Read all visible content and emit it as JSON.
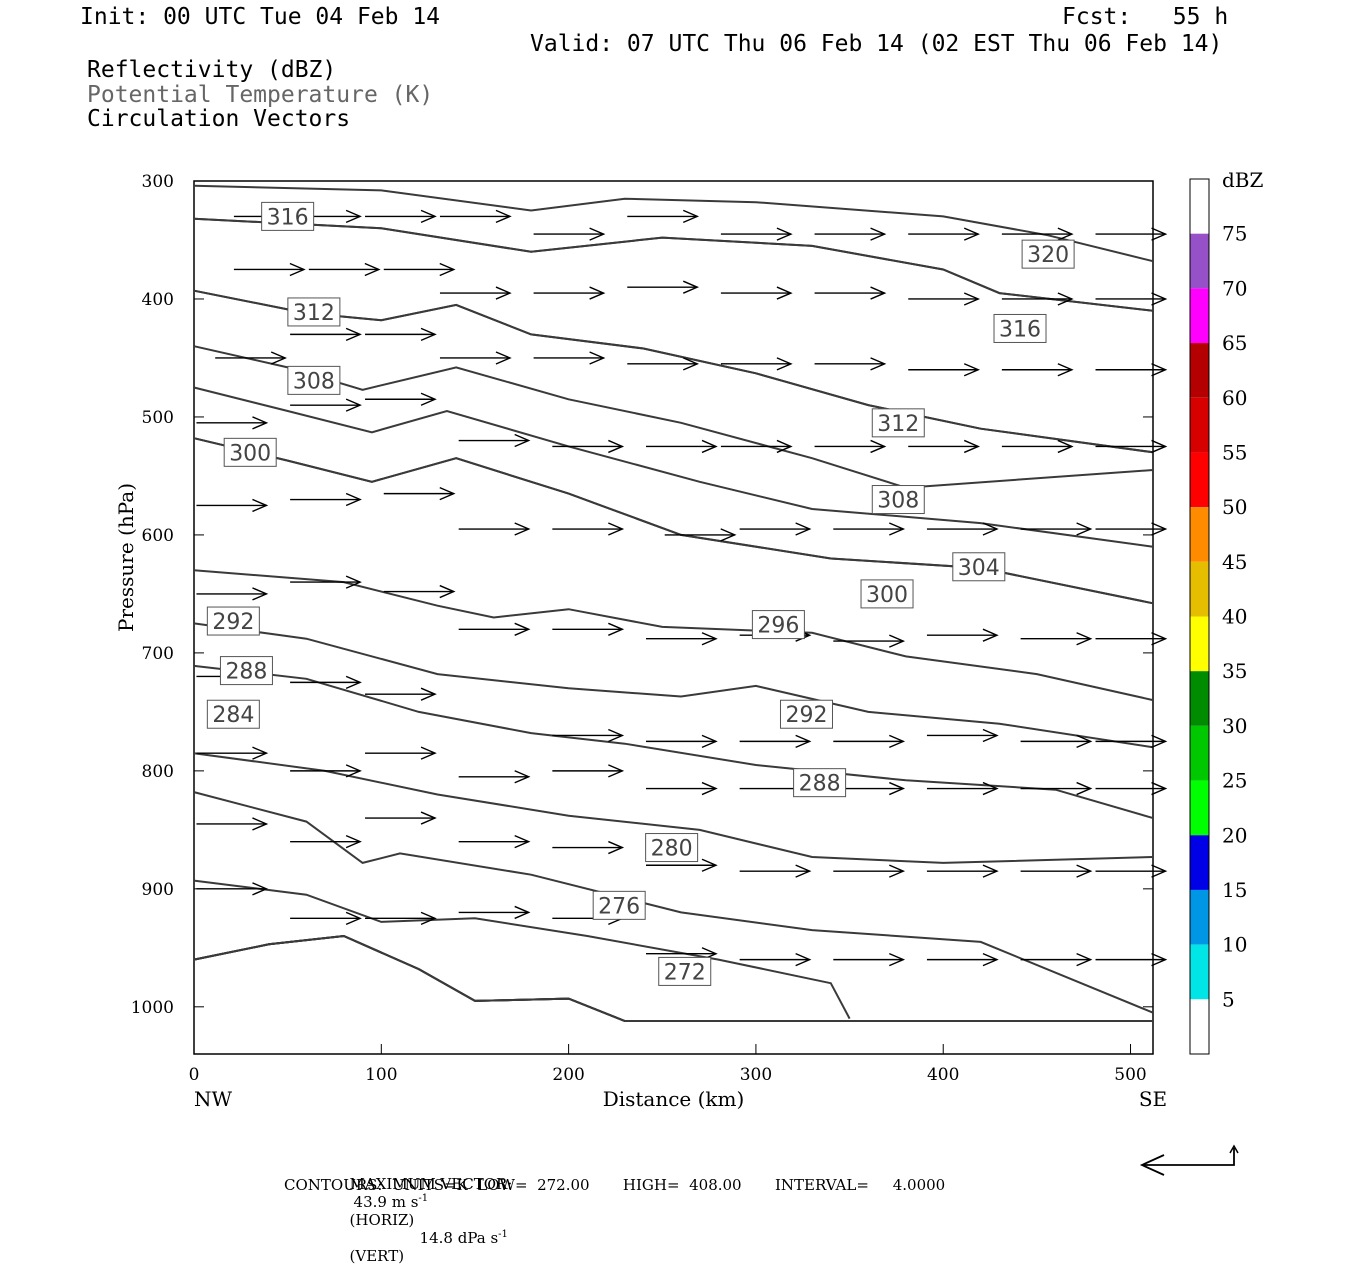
{
  "header": {
    "init": "Init: 00 UTC Tue 04 Feb 14",
    "fcst": "Fcst:   55 h",
    "valid": "Valid: 07 UTC Thu 06 Feb 14 (02 EST Thu 06 Feb 14)",
    "fields": [
      "Reflectivity (dBZ)",
      "Potential Temperature (K)",
      "Circulation Vectors"
    ]
  },
  "footer": {
    "max_vector_label": "MAXIMUM VECTOR:",
    "max_vector_horiz": "43.9 m s",
    "horiz_unit": "(HORIZ)",
    "max_vector_vert": "14.8 dPa s",
    "vert_unit": "(VERT)",
    "exponent": "-1",
    "contours": "CONTOURS:  UNITS=K  LOW=  272.00       HIGH=  408.00       INTERVAL=     4.0000"
  },
  "colorbar": {
    "title": "dBZ",
    "labels": [
      "5",
      "10",
      "15",
      "20",
      "25",
      "30",
      "35",
      "40",
      "45",
      "50",
      "55",
      "60",
      "65",
      "70",
      "75"
    ],
    "colors": [
      "#ffffff",
      "#00e6e6",
      "#0096e6",
      "#0000e6",
      "#00ff00",
      "#00c800",
      "#008c00",
      "#ffff00",
      "#e6be00",
      "#ff8c00",
      "#ff0000",
      "#d70000",
      "#b40000",
      "#ff00ff",
      "#9650c8",
      "#ffffff"
    ]
  },
  "chart_data": {
    "type": "contour",
    "xlabel": "Distance (km)",
    "ylabel": "Pressure (hPa)",
    "xlim": [
      0,
      512
    ],
    "ylim": [
      300,
      1040
    ],
    "x_ticks": [
      0,
      100,
      200,
      300,
      400,
      500
    ],
    "y_ticks": [
      300,
      400,
      500,
      600,
      700,
      800,
      900,
      1000
    ],
    "x_end_labels": [
      "NW",
      "SE"
    ],
    "contours": [
      {
        "value": 320,
        "label": "320",
        "label_at": [
          456,
          362
        ],
        "points": [
          [
            0,
            304
          ],
          [
            100,
            308
          ],
          [
            180,
            325
          ],
          [
            230,
            315
          ],
          [
            300,
            318
          ],
          [
            400,
            330
          ],
          [
            456,
            346
          ],
          [
            512,
            368
          ]
        ]
      },
      {
        "value": 316,
        "label": "316",
        "label_at": [
          50,
          330
        ],
        "points": [
          [
            0,
            332
          ],
          [
            100,
            340
          ],
          [
            180,
            360
          ],
          [
            250,
            348
          ],
          [
            330,
            355
          ],
          [
            400,
            375
          ],
          [
            430,
            395
          ],
          [
            512,
            410
          ]
        ]
      },
      {
        "value": 316,
        "label": "316",
        "label_at": [
          441,
          425
        ],
        "points": [
          [
            0,
            332
          ],
          [
            100,
            340
          ],
          [
            180,
            360
          ],
          [
            250,
            348
          ],
          [
            330,
            355
          ],
          [
            400,
            375
          ],
          [
            430,
            395
          ],
          [
            512,
            410
          ]
        ]
      },
      {
        "value": 312,
        "label": "312",
        "label_at": [
          64,
          411
        ],
        "points": [
          [
            0,
            393
          ],
          [
            60,
            412
          ],
          [
            100,
            418
          ],
          [
            140,
            405
          ],
          [
            180,
            430
          ],
          [
            240,
            442
          ],
          [
            300,
            463
          ],
          [
            360,
            490
          ],
          [
            420,
            510
          ],
          [
            512,
            530
          ]
        ]
      },
      {
        "value": 312,
        "label": "312",
        "label_at": [
          376,
          505
        ],
        "points": [
          [
            0,
            393
          ],
          [
            60,
            412
          ],
          [
            100,
            418
          ],
          [
            140,
            405
          ],
          [
            180,
            430
          ],
          [
            240,
            442
          ],
          [
            300,
            463
          ],
          [
            360,
            490
          ],
          [
            420,
            510
          ],
          [
            512,
            530
          ]
        ]
      },
      {
        "value": 308,
        "label": "308",
        "label_at": [
          64,
          469
        ],
        "points": [
          [
            0,
            440
          ],
          [
            50,
            458
          ],
          [
            90,
            477
          ],
          [
            140,
            458
          ],
          [
            200,
            485
          ],
          [
            260,
            505
          ],
          [
            330,
            535
          ],
          [
            380,
            560
          ],
          [
            512,
            545
          ]
        ]
      },
      {
        "value": 308,
        "label": "308",
        "label_at": [
          376,
          570
        ],
        "points": [
          [
            0,
            475
          ],
          [
            50,
            495
          ],
          [
            95,
            513
          ],
          [
            135,
            495
          ],
          [
            200,
            525
          ],
          [
            270,
            555
          ],
          [
            330,
            578
          ],
          [
            420,
            590
          ],
          [
            512,
            610
          ]
        ]
      },
      {
        "value": 304,
        "label": "304",
        "label_at": [
          419,
          627
        ],
        "points": [
          [
            0,
            518
          ],
          [
            50,
            537
          ],
          [
            95,
            555
          ],
          [
            140,
            535
          ],
          [
            200,
            565
          ],
          [
            260,
            600
          ],
          [
            340,
            620
          ],
          [
            420,
            628
          ],
          [
            512,
            658
          ]
        ]
      },
      {
        "value": 300,
        "label": "300",
        "label_at": [
          30,
          530
        ],
        "points": [
          [
            0,
            518
          ],
          [
            50,
            537
          ],
          [
            95,
            555
          ],
          [
            140,
            535
          ],
          [
            200,
            565
          ],
          [
            260,
            600
          ],
          [
            340,
            620
          ],
          [
            420,
            628
          ],
          [
            512,
            658
          ]
        ]
      },
      {
        "value": 300,
        "label": "300",
        "label_at": [
          370,
          650
        ],
        "points": [
          [
            0,
            630
          ],
          [
            80,
            640
          ],
          [
            130,
            660
          ],
          [
            160,
            670
          ],
          [
            200,
            663
          ],
          [
            250,
            678
          ],
          [
            330,
            683
          ],
          [
            380,
            703
          ],
          [
            450,
            718
          ],
          [
            512,
            740
          ]
        ]
      },
      {
        "value": 296,
        "label": "296",
        "label_at": [
          312,
          676
        ],
        "points": [
          [
            0,
            675
          ],
          [
            60,
            688
          ],
          [
            130,
            718
          ],
          [
            200,
            730
          ],
          [
            260,
            737
          ],
          [
            300,
            728
          ],
          [
            360,
            750
          ],
          [
            430,
            760
          ],
          [
            512,
            780
          ]
        ]
      },
      {
        "value": 292,
        "label": "292",
        "label_at": [
          21,
          673
        ],
        "points": [
          [
            0,
            711
          ],
          [
            60,
            722
          ],
          [
            120,
            750
          ],
          [
            180,
            768
          ],
          [
            230,
            777
          ],
          [
            300,
            795
          ],
          [
            380,
            808
          ],
          [
            460,
            816
          ],
          [
            512,
            840
          ]
        ]
      },
      {
        "value": 292,
        "label": "292",
        "label_at": [
          327,
          752
        ],
        "points": [
          [
            0,
            785
          ],
          [
            70,
            800
          ],
          [
            130,
            820
          ],
          [
            200,
            838
          ],
          [
            270,
            850
          ],
          [
            330,
            873
          ],
          [
            400,
            878
          ],
          [
            512,
            873
          ]
        ]
      },
      {
        "value": 288,
        "label": "288",
        "label_at": [
          28,
          715
        ],
        "points": [
          [
            0,
            818
          ],
          [
            60,
            843
          ],
          [
            90,
            878
          ],
          [
            110,
            870
          ],
          [
            180,
            888
          ],
          [
            260,
            920
          ],
          [
            330,
            935
          ],
          [
            420,
            945
          ],
          [
            512,
            1005
          ]
        ]
      },
      {
        "value": 288,
        "label": "288",
        "label_at": [
          334,
          810
        ],
        "points": [
          [
            0,
            893
          ],
          [
            60,
            905
          ],
          [
            100,
            928
          ],
          [
            150,
            925
          ],
          [
            210,
            940
          ],
          [
            280,
            960
          ],
          [
            340,
            980
          ],
          [
            350,
            1010
          ]
        ]
      },
      {
        "value": 284,
        "label": "284",
        "label_at": [
          21,
          752
        ],
        "points": [
          [
            0,
            960
          ],
          [
            40,
            947
          ],
          [
            80,
            940
          ],
          [
            120,
            968
          ],
          [
            150,
            995
          ],
          [
            200,
            993
          ],
          [
            230,
            1012
          ],
          [
            512,
            1012
          ]
        ]
      },
      {
        "value": 280,
        "label": "280",
        "label_at": [
          255,
          865
        ],
        "points": [
          [
            0,
            960
          ],
          [
            40,
            947
          ],
          [
            80,
            940
          ],
          [
            120,
            968
          ],
          [
            150,
            995
          ],
          [
            200,
            993
          ],
          [
            230,
            1012
          ],
          [
            512,
            1012
          ]
        ]
      },
      {
        "value": 276,
        "label": "276",
        "label_at": [
          227,
          914
        ],
        "points": [
          [
            0,
            960
          ],
          [
            40,
            947
          ],
          [
            80,
            940
          ],
          [
            120,
            968
          ],
          [
            150,
            995
          ],
          [
            200,
            993
          ],
          [
            230,
            1012
          ],
          [
            512,
            1012
          ]
        ]
      },
      {
        "value": 272,
        "label": "272",
        "label_at": [
          262,
          970
        ],
        "points": [
          [
            0,
            960
          ],
          [
            40,
            947
          ],
          [
            80,
            940
          ],
          [
            120,
            968
          ],
          [
            150,
            995
          ],
          [
            200,
            993
          ],
          [
            230,
            1012
          ],
          [
            512,
            1012
          ]
        ]
      }
    ],
    "vectors": [
      [
        40,
        330,
        1
      ],
      [
        70,
        330,
        1
      ],
      [
        110,
        330,
        1
      ],
      [
        150,
        330,
        1
      ],
      [
        200,
        345,
        1
      ],
      [
        250,
        330,
        1
      ],
      [
        300,
        345,
        1
      ],
      [
        350,
        345,
        1
      ],
      [
        400,
        345,
        1
      ],
      [
        450,
        345,
        1
      ],
      [
        500,
        345,
        1
      ],
      [
        40,
        375,
        1
      ],
      [
        80,
        375,
        1
      ],
      [
        120,
        375,
        1
      ],
      [
        150,
        395,
        1
      ],
      [
        200,
        395,
        1
      ],
      [
        250,
        390,
        1
      ],
      [
        300,
        395,
        1
      ],
      [
        350,
        395,
        1
      ],
      [
        400,
        400,
        1
      ],
      [
        450,
        400,
        1
      ],
      [
        500,
        400,
        1
      ],
      [
        30,
        450,
        1
      ],
      [
        70,
        430,
        1
      ],
      [
        110,
        430,
        1
      ],
      [
        150,
        450,
        1
      ],
      [
        200,
        450,
        1
      ],
      [
        250,
        455,
        1
      ],
      [
        300,
        455,
        1
      ],
      [
        350,
        455,
        1
      ],
      [
        400,
        460,
        1
      ],
      [
        450,
        460,
        1
      ],
      [
        500,
        460,
        1
      ],
      [
        20,
        505,
        1
      ],
      [
        70,
        490,
        1
      ],
      [
        110,
        485,
        1
      ],
      [
        160,
        520,
        1
      ],
      [
        210,
        525,
        1
      ],
      [
        260,
        525,
        1
      ],
      [
        300,
        525,
        1
      ],
      [
        350,
        525,
        1
      ],
      [
        400,
        525,
        1
      ],
      [
        450,
        525,
        1
      ],
      [
        500,
        525,
        1
      ],
      [
        20,
        575,
        1
      ],
      [
        70,
        570,
        1
      ],
      [
        120,
        565,
        1
      ],
      [
        160,
        595,
        1
      ],
      [
        210,
        595,
        1
      ],
      [
        270,
        600,
        1
      ],
      [
        310,
        595,
        1
      ],
      [
        360,
        595,
        1
      ],
      [
        410,
        595,
        1
      ],
      [
        460,
        595,
        1
      ],
      [
        500,
        595,
        1
      ],
      [
        20,
        650,
        1
      ],
      [
        70,
        640,
        1
      ],
      [
        120,
        648,
        1
      ],
      [
        160,
        680,
        1
      ],
      [
        210,
        680,
        1
      ],
      [
        260,
        688,
        1
      ],
      [
        310,
        685,
        1
      ],
      [
        360,
        690,
        1
      ],
      [
        410,
        685,
        1
      ],
      [
        460,
        688,
        1
      ],
      [
        500,
        688,
        1
      ],
      [
        20,
        720,
        1
      ],
      [
        70,
        725,
        1
      ],
      [
        110,
        735,
        1
      ],
      [
        210,
        770,
        1
      ],
      [
        260,
        775,
        1
      ],
      [
        310,
        775,
        1
      ],
      [
        360,
        775,
        1
      ],
      [
        410,
        770,
        1
      ],
      [
        460,
        775,
        1
      ],
      [
        500,
        775,
        1
      ],
      [
        20,
        785,
        1
      ],
      [
        70,
        800,
        1
      ],
      [
        110,
        785,
        1
      ],
      [
        160,
        805,
        1
      ],
      [
        210,
        800,
        1
      ],
      [
        260,
        815,
        1
      ],
      [
        310,
        815,
        1
      ],
      [
        360,
        815,
        1
      ],
      [
        410,
        815,
        1
      ],
      [
        460,
        815,
        1
      ],
      [
        500,
        815,
        1
      ],
      [
        20,
        845,
        1
      ],
      [
        70,
        860,
        1
      ],
      [
        110,
        840,
        1
      ],
      [
        160,
        860,
        1
      ],
      [
        210,
        865,
        1
      ],
      [
        260,
        880,
        1
      ],
      [
        310,
        885,
        1
      ],
      [
        360,
        885,
        1
      ],
      [
        410,
        885,
        1
      ],
      [
        460,
        885,
        1
      ],
      [
        500,
        885,
        1
      ],
      [
        20,
        900,
        1
      ],
      [
        70,
        925,
        1
      ],
      [
        110,
        925,
        1
      ],
      [
        160,
        920,
        1
      ],
      [
        210,
        925,
        1
      ],
      [
        260,
        955,
        1
      ],
      [
        310,
        960,
        1
      ],
      [
        360,
        960,
        1
      ],
      [
        410,
        960,
        1
      ],
      [
        460,
        960,
        1
      ],
      [
        500,
        960,
        1
      ]
    ]
  }
}
